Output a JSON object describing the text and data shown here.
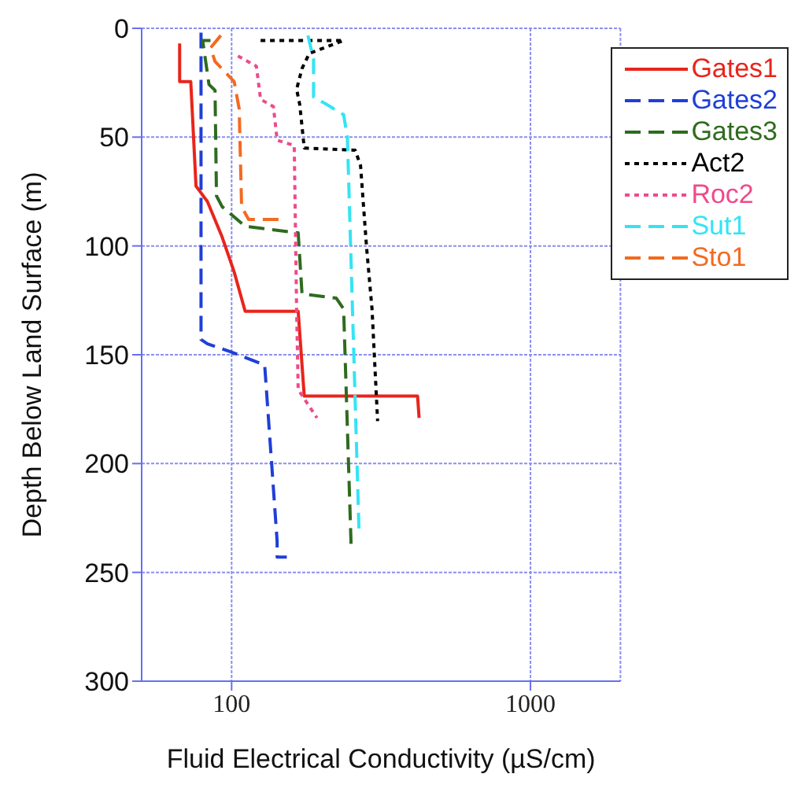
{
  "chart_data": {
    "type": "line",
    "xlabel": "Fluid Electrical Conductivity (µS/cm)",
    "ylabel": "Depth Below Land Surface (m)",
    "log": "x",
    "xlim": [
      50,
      2000
    ],
    "xticks": [
      100,
      1000
    ],
    "ylim": [
      300,
      0
    ],
    "yticks": [
      0,
      50,
      100,
      150,
      200,
      250,
      300
    ],
    "grid": true,
    "legend": "top right",
    "marker": "none",
    "series": [
      {
        "name": "Gates1",
        "color": "#e8251c",
        "line_style": "solid",
        "x": [
          67,
          67,
          73,
          76,
          83,
          93,
          102,
          111,
          167,
          175,
          419,
          424
        ],
        "values": [
          7,
          24.5,
          24.5,
          72.5,
          79.6,
          96,
          112,
          130,
          130,
          169,
          169,
          179
        ]
      },
      {
        "name": "Gates2",
        "color": "#1f3fd6",
        "line_style": "dashed",
        "x": [
          79,
          79,
          83,
          99,
          129,
          142,
          142,
          153
        ],
        "values": [
          2,
          143,
          145,
          148.6,
          154.7,
          235.7,
          243,
          243
        ]
      },
      {
        "name": "Gates3",
        "color": "#2e6b1f",
        "line_style": "dashed",
        "x": [
          85,
          80,
          84,
          88,
          89,
          93,
          111,
          167,
          172,
          224,
          237,
          251
        ],
        "values": [
          5.6,
          5.6,
          25.8,
          28.5,
          77,
          82,
          91,
          94,
          122,
          124,
          129,
          237
        ]
      },
      {
        "name": "Act2",
        "color": "#000000",
        "line_style": "dotted",
        "x": [
          125,
          237,
          182,
          172,
          165,
          169,
          175,
          259,
          270,
          283,
          295,
          308
        ],
        "values": [
          5.6,
          5.6,
          11.5,
          18.5,
          28,
          35,
          55,
          56,
          63,
          101,
          129,
          180.5
        ]
      },
      {
        "name": "Roc2",
        "color": "#ee4a8a",
        "line_style": "dotted",
        "x": [
          105,
          121,
          125,
          138,
          142,
          162,
          165,
          167,
          193
        ],
        "values": [
          12.7,
          17.4,
          32.6,
          36,
          51.4,
          53.8,
          129,
          166,
          179
        ]
      },
      {
        "name": "Sut1",
        "color": "#33e4f4",
        "line_style": "dashed",
        "x": [
          180,
          188,
          188,
          208,
          237,
          244,
          267
        ],
        "values": [
          3.3,
          14,
          31.5,
          35,
          39.7,
          50,
          232
        ]
      },
      {
        "name": "Sto1",
        "color": "#f36a21",
        "line_style": "dashed",
        "x": [
          92,
          85,
          88,
          102,
          106,
          108,
          114,
          147
        ],
        "values": [
          3.3,
          9,
          15.2,
          24.5,
          37,
          82,
          87.8,
          87.8
        ]
      }
    ]
  }
}
